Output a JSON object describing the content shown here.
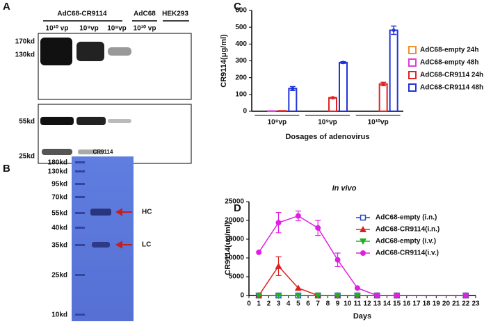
{
  "panel_labels": [
    "A",
    "B",
    "C",
    "D"
  ],
  "gel_a": {
    "groups": [
      "AdC68-CR9114",
      "AdC68",
      "HEK293"
    ],
    "lanes": [
      "10¹⁰ vp",
      "10⁹vp",
      "10⁸vp",
      "10¹⁰ vp"
    ],
    "top_markers": [
      "170kd",
      "130kd"
    ],
    "bottom_markers": [
      "55kd",
      "25kd"
    ]
  },
  "gel_b": {
    "lane": "CR9114",
    "markers": [
      "180kd",
      "130kd",
      "95kd",
      "70kd",
      "55kd",
      "40kd",
      "35kd",
      "25kd",
      "10kd"
    ],
    "bands": [
      "HC",
      "LC"
    ]
  },
  "chart_data": [
    {
      "type": "bar",
      "y_label": "CR9114(μg/ml)",
      "x_label": "Dosages of adenovirus",
      "categories": [
        "10⁸vp",
        "10⁹vp",
        "10¹⁰vp"
      ],
      "series": [
        {
          "name": "AdC68-empty 24h",
          "color": "#f0912a",
          "values": [
            0,
            0,
            0
          ],
          "errors": [
            null,
            null,
            null
          ]
        },
        {
          "name": "AdC68-empty 48h",
          "color": "#e03ce0",
          "values": [
            2,
            0,
            0
          ],
          "errors": [
            null,
            null,
            null
          ]
        },
        {
          "name": "AdC68-CR9114 24h",
          "color": "#e02424",
          "values": [
            3,
            80,
            162
          ],
          "errors": [
            null,
            4,
            10
          ]
        },
        {
          "name": "AdC68-CR9114 48h",
          "color": "#2233d6",
          "values": [
            135,
            290,
            482
          ],
          "errors": [
            12,
            5,
            25
          ]
        }
      ],
      "ylim": [
        0,
        600
      ],
      "yticks": [
        0,
        100,
        200,
        300,
        400,
        500,
        600
      ]
    },
    {
      "type": "line",
      "title": "In vivo",
      "y_label": "CR9114(ug/ml)",
      "x_label": "Days",
      "x": [
        1,
        3,
        5,
        7,
        9,
        11,
        13,
        15,
        22
      ],
      "series": [
        {
          "name": "AdC68-empty (i.n.)",
          "color": "#2244cc",
          "marker": "square",
          "values": [
            0,
            0,
            0,
            0,
            0,
            0,
            0,
            0,
            0
          ],
          "errors": [
            null,
            null,
            null,
            null,
            null,
            null,
            null,
            null,
            null
          ]
        },
        {
          "name": "AdC68-CR9114(i.n.)",
          "color": "#e02020",
          "marker": "triangle",
          "values": [
            0,
            7800,
            2000,
            0,
            0,
            0,
            0,
            0,
            0
          ],
          "errors": [
            null,
            2500,
            null,
            null,
            null,
            null,
            null,
            null,
            null
          ]
        },
        {
          "name": "AdC68-empty (i.v.)",
          "color": "#22b022",
          "marker": "triangle-down",
          "values": [
            0,
            0,
            0,
            0,
            0,
            0,
            0,
            0,
            0
          ],
          "errors": [
            null,
            null,
            null,
            null,
            null,
            null,
            null,
            null,
            null
          ]
        },
        {
          "name": "AdC68-CR9114(i.v.)",
          "color": "#e020e0",
          "marker": "circle",
          "values": [
            11500,
            19400,
            21200,
            18000,
            9500,
            2000,
            0,
            0,
            0
          ],
          "errors": [
            null,
            2700,
            1300,
            2000,
            1800,
            null,
            null,
            null,
            null
          ]
        }
      ],
      "xlim": [
        0,
        23
      ],
      "xticks": [
        0,
        1,
        2,
        3,
        4,
        5,
        6,
        7,
        8,
        9,
        10,
        11,
        12,
        13,
        14,
        15,
        16,
        17,
        18,
        19,
        20,
        21,
        22,
        23
      ],
      "ylim": [
        0,
        25000
      ],
      "yticks": [
        0,
        5000,
        10000,
        15000,
        20000,
        25000
      ]
    }
  ]
}
